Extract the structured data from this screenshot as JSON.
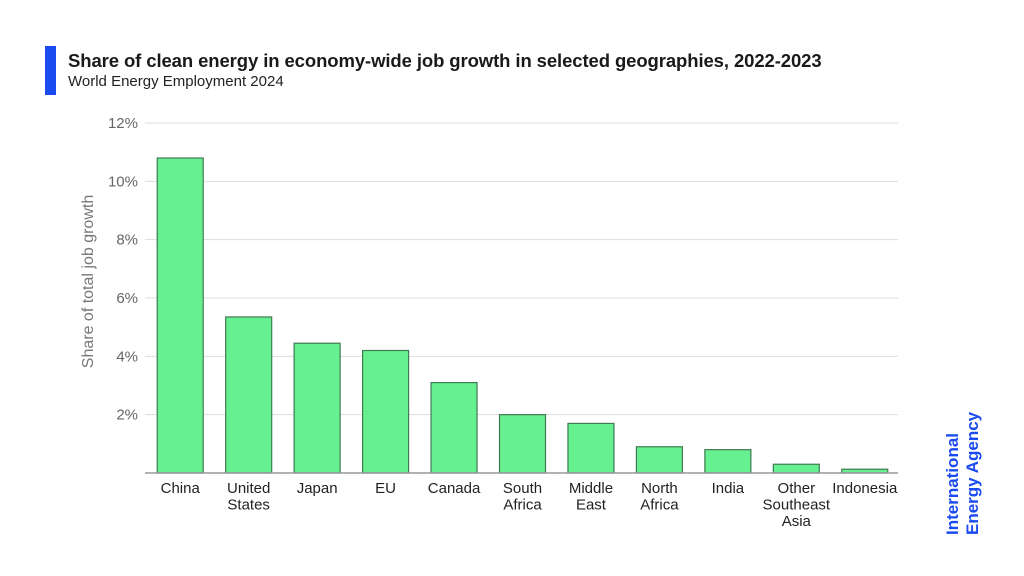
{
  "header": {
    "title": "Share of clean energy in economy-wide job growth in selected geographies, 2022-2023",
    "subtitle": "World Energy Employment 2024"
  },
  "logo": {
    "line1": "International",
    "line2": "Energy Agency"
  },
  "colors": {
    "accent": "#1a4bf0",
    "bar_fill": "#66f08f",
    "bar_stroke": "#3f7a52",
    "grid": "#dddddd",
    "axis": "#999999"
  },
  "chart_data": {
    "type": "bar",
    "title": "Share of clean energy in economy-wide job growth in selected geographies, 2022-2023",
    "subtitle": "World Energy Employment 2024",
    "xlabel": "",
    "ylabel": "Share of total job growth",
    "ylim": [
      0,
      12
    ],
    "yticks": [
      2,
      4,
      6,
      8,
      10,
      12
    ],
    "ytick_labels": [
      "2%",
      "4%",
      "6%",
      "8%",
      "10%",
      "12%"
    ],
    "grid": true,
    "legend": "none",
    "categories": [
      [
        "China"
      ],
      [
        "United",
        "States"
      ],
      [
        "Japan"
      ],
      [
        "EU"
      ],
      [
        "Canada"
      ],
      [
        "South",
        "Africa"
      ],
      [
        "Middle",
        "East"
      ],
      [
        "North",
        "Africa"
      ],
      [
        "India"
      ],
      [
        "Other",
        "Southeast",
        "Asia"
      ],
      [
        "Indonesia"
      ]
    ],
    "values": [
      10.8,
      5.35,
      4.45,
      4.2,
      3.1,
      2.0,
      1.7,
      0.9,
      0.8,
      0.3,
      0.13
    ]
  }
}
